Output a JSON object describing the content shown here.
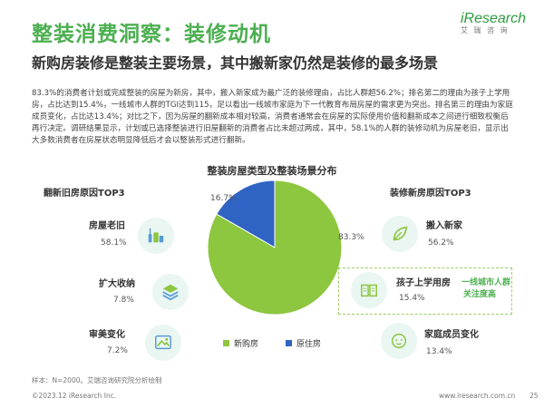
{
  "header": {
    "title": "整装消费洞察：装修动机",
    "subtitle": "新购房装修是整装主要场景，其中搬新家仍然是装修的最多场景",
    "logo_text": "iResearch",
    "logo_sub": "艾 瑞 咨 询"
  },
  "body_text": "83.3%的消费者计划或完成整装的房屋为新房，其中，搬入新家成为最广泛的装修理由，占比人群超56.2%；排名第二的理由为孩子上学用房，占比达到15.4%，一线城市人群的TGI达到115，足以看出一线城市家庭为下一代教育布局房屋的需求更为突出。排名第三的理由为家庭成员变化，占比达13.4%；对比之下，因为房屋的翻新成本相对较高，消费者通常会在房屋的实际使用价值和翻新成本之间进行细致权衡后再行决定。调研结果显示，计划或已选择整装进行旧屋翻新的消费者占比未超过两成，其中，58.1%的人群的装修动机为房屋老旧，显示出大多数消费者在房屋状态明显降低后才会以整装形式进行翻新。",
  "chart_data": {
    "type": "pie",
    "title": "整装房屋类型及整装场景分布",
    "categories": [
      "新购房",
      "原住房"
    ],
    "values": [
      83.3,
      16.7
    ],
    "colors": [
      "#8dc63f",
      "#2f63c4"
    ],
    "value_labels": [
      "83.3%",
      "16.7%"
    ],
    "legend_placement": "bottom",
    "left_panel": {
      "title": "翻新旧房原因TOP3",
      "items": [
        {
          "label": "房屋老旧",
          "value": 58.1,
          "display": "58.1%",
          "icon": "cleaning-icon"
        },
        {
          "label": "扩大收纳",
          "value": 7.8,
          "display": "7.8%",
          "icon": "storage-icon"
        },
        {
          "label": "审美变化",
          "value": 7.2,
          "display": "7.2%",
          "icon": "palette-icon"
        }
      ]
    },
    "right_panel": {
      "title": "装修新房原因TOP3",
      "items": [
        {
          "label": "搬入新家",
          "value": 56.2,
          "display": "56.2%",
          "icon": "leaf-icon"
        },
        {
          "label": "孩子上学用房",
          "value": 15.4,
          "display": "15.4%",
          "icon": "book-icon"
        },
        {
          "label": "家庭成员变化",
          "value": 13.4,
          "display": "13.4%",
          "icon": "baby-icon"
        }
      ],
      "callout": [
        "一线城市人群",
        "关注度高"
      ]
    }
  },
  "footer": {
    "sample_note": "样本：N=2000。艾瑞咨询研究院分析绘制",
    "copyright": "©2023.12 iResearch Inc.",
    "url": "www.iresearch.com.cn",
    "page": "25"
  }
}
